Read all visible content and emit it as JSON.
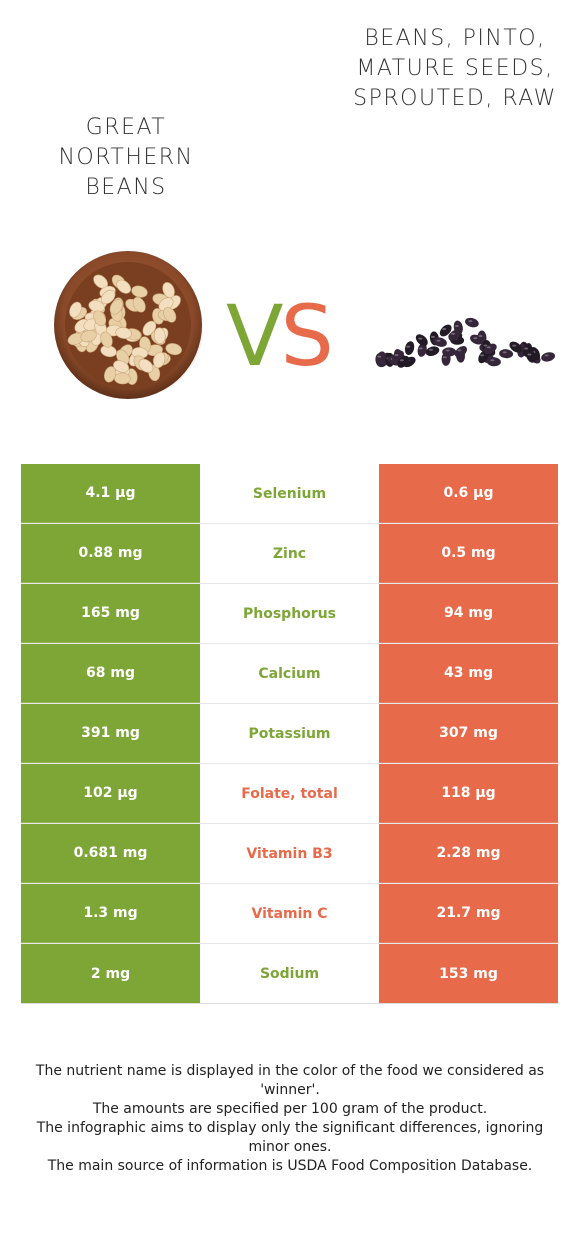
{
  "left_food": {
    "title": "GREAT NORTHERN BEANS",
    "color": "#7da637"
  },
  "right_food": {
    "title": "BEANS, PINTO, MATURE SEEDS, SPROUTED, RAW",
    "color": "#e76a4a"
  },
  "vs": {
    "v": "V",
    "s": "S"
  },
  "rows": [
    {
      "left": "4.1 µg",
      "nutrient": "Selenium",
      "right": "0.6 µg",
      "winner": "left"
    },
    {
      "left": "0.88 mg",
      "nutrient": "Zinc",
      "right": "0.5 mg",
      "winner": "left"
    },
    {
      "left": "165 mg",
      "nutrient": "Phosphorus",
      "right": "94 mg",
      "winner": "left"
    },
    {
      "left": "68 mg",
      "nutrient": "Calcium",
      "right": "43 mg",
      "winner": "left"
    },
    {
      "left": "391 mg",
      "nutrient": "Potassium",
      "right": "307 mg",
      "winner": "left"
    },
    {
      "left": "102 µg",
      "nutrient": "Folate, total",
      "right": "118 µg",
      "winner": "right"
    },
    {
      "left": "0.681 mg",
      "nutrient": "Vitamin B3",
      "right": "2.28 mg",
      "winner": "right"
    },
    {
      "left": "1.3 mg",
      "nutrient": "Vitamin C",
      "right": "21.7 mg",
      "winner": "right"
    },
    {
      "left": "2 mg",
      "nutrient": "Sodium",
      "right": "153 mg",
      "winner": "left"
    }
  ],
  "notes": [
    "The nutrient name is displayed in the color of the food we considered as 'winner'.",
    "The amounts are specified per 100 gram of the product.",
    "The infographic aims to display only the significant differences, ignoring minor ones.",
    "The main source of information is USDA Food Composition Database."
  ]
}
